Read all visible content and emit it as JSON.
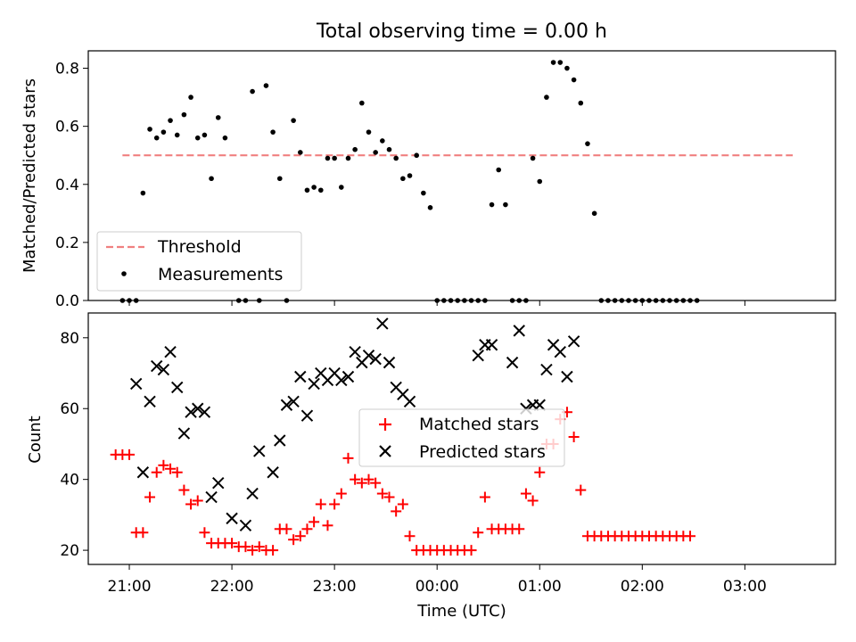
{
  "chart_data": [
    {
      "type": "scatter",
      "title": "Total observing time = 0.00 h",
      "ylabel": "Matched/Predicted stars",
      "xlabel": "",
      "xlim": [
        "20:36",
        "03:53"
      ],
      "ylim": [
        0,
        0.86
      ],
      "yticks": [
        {
          "value": 0.0,
          "label": "0.0"
        },
        {
          "value": 0.2,
          "label": "0.2"
        },
        {
          "value": 0.4,
          "label": "0.4"
        },
        {
          "value": 0.6,
          "label": "0.6"
        },
        {
          "value": 0.8,
          "label": "0.8"
        }
      ],
      "xticks": [
        "21:00",
        "22:00",
        "23:00",
        "00:00",
        "01:00",
        "02:00",
        "03:00"
      ],
      "threshold": {
        "name": "Threshold",
        "value": 0.5,
        "x_range": [
          "20:56",
          "03:28"
        ],
        "color": "#f08080"
      },
      "legend": {
        "placement": "lower-left",
        "entries": [
          "Threshold",
          "Measurements"
        ]
      },
      "series": [
        {
          "name": "Measurements",
          "color": "#000000",
          "points": [
            [
              "20:56",
              0.0
            ],
            [
              "21:00",
              0.0
            ],
            [
              "21:04",
              0.0
            ],
            [
              "21:08",
              0.37
            ],
            [
              "21:12",
              0.59
            ],
            [
              "21:16",
              0.56
            ],
            [
              "21:20",
              0.58
            ],
            [
              "21:24",
              0.62
            ],
            [
              "21:28",
              0.57
            ],
            [
              "21:32",
              0.64
            ],
            [
              "21:36",
              0.7
            ],
            [
              "21:40",
              0.56
            ],
            [
              "21:44",
              0.57
            ],
            [
              "21:48",
              0.42
            ],
            [
              "21:52",
              0.63
            ],
            [
              "21:56",
              0.56
            ],
            [
              "22:04",
              0.0
            ],
            [
              "22:08",
              0.0
            ],
            [
              "22:12",
              0.72
            ],
            [
              "22:16",
              0.0
            ],
            [
              "22:20",
              0.74
            ],
            [
              "22:24",
              0.58
            ],
            [
              "22:28",
              0.42
            ],
            [
              "22:32",
              0.0
            ],
            [
              "22:36",
              0.62
            ],
            [
              "22:40",
              0.51
            ],
            [
              "22:44",
              0.38
            ],
            [
              "22:48",
              0.39
            ],
            [
              "22:52",
              0.38
            ],
            [
              "22:56",
              0.49
            ],
            [
              "23:00",
              0.49
            ],
            [
              "23:04",
              0.39
            ],
            [
              "23:08",
              0.49
            ],
            [
              "23:12",
              0.52
            ],
            [
              "23:16",
              0.68
            ],
            [
              "23:20",
              0.58
            ],
            [
              "23:24",
              0.51
            ],
            [
              "23:28",
              0.55
            ],
            [
              "23:32",
              0.52
            ],
            [
              "23:36",
              0.49
            ],
            [
              "23:40",
              0.42
            ],
            [
              "23:44",
              0.43
            ],
            [
              "23:48",
              0.5
            ],
            [
              "23:52",
              0.37
            ],
            [
              "23:56",
              0.32
            ],
            [
              "00:00",
              0.0
            ],
            [
              "00:04",
              0.0
            ],
            [
              "00:08",
              0.0
            ],
            [
              "00:12",
              0.0
            ],
            [
              "00:16",
              0.0
            ],
            [
              "00:20",
              0.0
            ],
            [
              "00:24",
              0.0
            ],
            [
              "00:28",
              0.0
            ],
            [
              "00:32",
              0.33
            ],
            [
              "00:36",
              0.45
            ],
            [
              "00:40",
              0.33
            ],
            [
              "00:44",
              0.0
            ],
            [
              "00:48",
              0.0
            ],
            [
              "00:52",
              0.0
            ],
            [
              "00:56",
              0.49
            ],
            [
              "01:00",
              0.41
            ],
            [
              "01:04",
              0.7
            ],
            [
              "01:08",
              0.82
            ],
            [
              "01:12",
              0.82
            ],
            [
              "01:16",
              0.8
            ],
            [
              "01:20",
              0.76
            ],
            [
              "01:24",
              0.68
            ],
            [
              "01:28",
              0.54
            ],
            [
              "01:32",
              0.3
            ],
            [
              "01:36",
              0.0
            ],
            [
              "01:40",
              0.0
            ],
            [
              "01:44",
              0.0
            ],
            [
              "01:48",
              0.0
            ],
            [
              "01:52",
              0.0
            ],
            [
              "01:56",
              0.0
            ],
            [
              "02:00",
              0.0
            ],
            [
              "02:04",
              0.0
            ],
            [
              "02:08",
              0.0
            ],
            [
              "02:12",
              0.0
            ],
            [
              "02:16",
              0.0
            ],
            [
              "02:20",
              0.0
            ],
            [
              "02:24",
              0.0
            ],
            [
              "02:28",
              0.0
            ],
            [
              "02:32",
              0.0
            ]
          ]
        }
      ]
    },
    {
      "type": "scatter",
      "title": "",
      "ylabel": "Count",
      "xlabel": "Time (UTC)",
      "xlim": [
        "20:36",
        "03:53"
      ],
      "ylim": [
        16,
        87
      ],
      "yticks": [
        {
          "value": 20,
          "label": "20"
        },
        {
          "value": 40,
          "label": "40"
        },
        {
          "value": 60,
          "label": "60"
        },
        {
          "value": 80,
          "label": "80"
        }
      ],
      "xticks": [
        "21:00",
        "22:00",
        "23:00",
        "00:00",
        "01:00",
        "02:00",
        "03:00"
      ],
      "legend": {
        "placement": "center",
        "entries": [
          "Matched stars",
          "Predicted stars"
        ]
      },
      "series": [
        {
          "name": "Matched stars",
          "marker": "plus",
          "color": "#ff0000",
          "points": [
            [
              "20:52",
              47
            ],
            [
              "20:56",
              47
            ],
            [
              "21:00",
              47
            ],
            [
              "21:04",
              25
            ],
            [
              "21:08",
              25
            ],
            [
              "21:12",
              35
            ],
            [
              "21:16",
              42
            ],
            [
              "21:20",
              44
            ],
            [
              "21:24",
              43
            ],
            [
              "21:28",
              42
            ],
            [
              "21:32",
              37
            ],
            [
              "21:36",
              33
            ],
            [
              "21:40",
              34
            ],
            [
              "21:44",
              25
            ],
            [
              "21:48",
              22
            ],
            [
              "21:52",
              22
            ],
            [
              "21:56",
              22
            ],
            [
              "22:00",
              22
            ],
            [
              "22:04",
              21
            ],
            [
              "22:08",
              21
            ],
            [
              "22:12",
              20
            ],
            [
              "22:16",
              21
            ],
            [
              "22:20",
              20
            ],
            [
              "22:24",
              20
            ],
            [
              "22:28",
              26
            ],
            [
              "22:32",
              26
            ],
            [
              "22:36",
              23
            ],
            [
              "22:40",
              24
            ],
            [
              "22:44",
              26
            ],
            [
              "22:48",
              28
            ],
            [
              "22:52",
              33
            ],
            [
              "22:56",
              27
            ],
            [
              "23:00",
              33
            ],
            [
              "23:04",
              36
            ],
            [
              "23:08",
              46
            ],
            [
              "23:12",
              40
            ],
            [
              "23:16",
              39
            ],
            [
              "23:20",
              40
            ],
            [
              "23:24",
              39
            ],
            [
              "23:28",
              36
            ],
            [
              "23:32",
              35
            ],
            [
              "23:36",
              31
            ],
            [
              "23:40",
              33
            ],
            [
              "23:44",
              24
            ],
            [
              "23:48",
              20
            ],
            [
              "23:52",
              20
            ],
            [
              "23:56",
              20
            ],
            [
              "00:00",
              20
            ],
            [
              "00:04",
              20
            ],
            [
              "00:08",
              20
            ],
            [
              "00:12",
              20
            ],
            [
              "00:16",
              20
            ],
            [
              "00:20",
              20
            ],
            [
              "00:24",
              25
            ],
            [
              "00:28",
              35
            ],
            [
              "00:32",
              26
            ],
            [
              "00:36",
              26
            ],
            [
              "00:40",
              26
            ],
            [
              "00:44",
              26
            ],
            [
              "00:48",
              26
            ],
            [
              "00:52",
              36
            ],
            [
              "00:56",
              34
            ],
            [
              "01:00",
              42
            ],
            [
              "01:04",
              50
            ],
            [
              "01:08",
              50
            ],
            [
              "01:12",
              57
            ],
            [
              "01:16",
              59
            ],
            [
              "01:20",
              52
            ],
            [
              "01:24",
              37
            ],
            [
              "01:28",
              24
            ],
            [
              "01:32",
              24
            ],
            [
              "01:36",
              24
            ],
            [
              "01:40",
              24
            ],
            [
              "01:44",
              24
            ],
            [
              "01:48",
              24
            ],
            [
              "01:52",
              24
            ],
            [
              "01:56",
              24
            ],
            [
              "02:00",
              24
            ],
            [
              "02:04",
              24
            ],
            [
              "02:08",
              24
            ],
            [
              "02:12",
              24
            ],
            [
              "02:16",
              24
            ],
            [
              "02:20",
              24
            ],
            [
              "02:24",
              24
            ],
            [
              "02:28",
              24
            ]
          ]
        },
        {
          "name": "Predicted stars",
          "marker": "x",
          "color": "#000000",
          "points": [
            [
              "21:04",
              67
            ],
            [
              "21:08",
              42
            ],
            [
              "21:12",
              62
            ],
            [
              "21:16",
              72
            ],
            [
              "21:20",
              71
            ],
            [
              "21:24",
              76
            ],
            [
              "21:28",
              66
            ],
            [
              "21:32",
              53
            ],
            [
              "21:36",
              59
            ],
            [
              "21:40",
              60
            ],
            [
              "21:44",
              59
            ],
            [
              "21:48",
              35
            ],
            [
              "21:52",
              39
            ],
            [
              "22:00",
              29
            ],
            [
              "22:08",
              27
            ],
            [
              "22:12",
              36
            ],
            [
              "22:16",
              48
            ],
            [
              "22:24",
              42
            ],
            [
              "22:28",
              51
            ],
            [
              "22:32",
              61
            ],
            [
              "22:36",
              62
            ],
            [
              "22:40",
              69
            ],
            [
              "22:44",
              58
            ],
            [
              "22:48",
              67
            ],
            [
              "22:52",
              70
            ],
            [
              "22:56",
              68
            ],
            [
              "23:00",
              70
            ],
            [
              "23:04",
              68
            ],
            [
              "23:08",
              69
            ],
            [
              "23:12",
              76
            ],
            [
              "23:16",
              73
            ],
            [
              "23:20",
              75
            ],
            [
              "23:24",
              74
            ],
            [
              "23:28",
              84
            ],
            [
              "23:32",
              73
            ],
            [
              "23:36",
              66
            ],
            [
              "23:40",
              64
            ],
            [
              "23:44",
              62
            ],
            [
              "00:24",
              75
            ],
            [
              "00:28",
              78
            ],
            [
              "00:32",
              78
            ],
            [
              "00:44",
              73
            ],
            [
              "00:48",
              82
            ],
            [
              "00:52",
              60
            ],
            [
              "00:56",
              61
            ],
            [
              "01:00",
              61
            ],
            [
              "01:04",
              71
            ],
            [
              "01:08",
              78
            ],
            [
              "01:12",
              76
            ],
            [
              "01:16",
              69
            ],
            [
              "01:20",
              79
            ]
          ]
        }
      ]
    }
  ]
}
